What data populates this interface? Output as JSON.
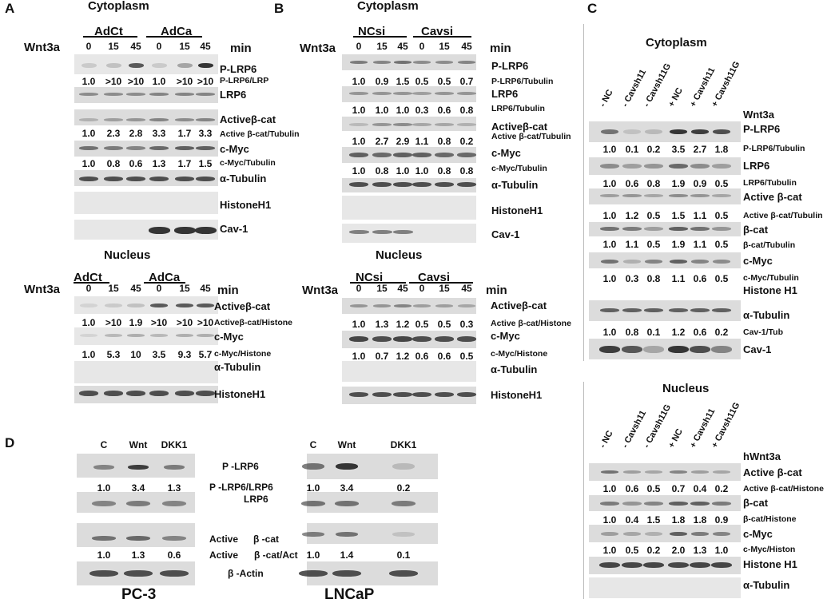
{
  "A": {
    "letter": "A",
    "cyto": {
      "title": "Cytoplasm",
      "treatment": "Wnt3a",
      "groups": [
        "AdCt",
        "AdCa"
      ],
      "times": [
        "0",
        "15",
        "45",
        "0",
        "15",
        "45"
      ],
      "unit": "min",
      "rows": [
        {
          "label": "P-LRP6",
          "quant": "P-LRP6/LRP",
          "values": [
            "1.0",
            ">10",
            ">10",
            "1.0",
            ">10",
            ">10"
          ]
        },
        {
          "label": "LRP6"
        },
        {
          "label": "Activeβ-cat",
          "quant": "Active β-cat/Tubulin",
          "values": [
            "1.0",
            "2.3",
            "2.8",
            "3.3",
            "1.7",
            "3.3"
          ]
        },
        {
          "label": "c-Myc",
          "quant": "c-Myc/Tubulin",
          "values": [
            "1.0",
            "0.8",
            "0.6",
            "1.3",
            "1.7",
            "1.5"
          ]
        },
        {
          "label": "α-Tubulin"
        },
        {
          "label": "HistoneH1"
        },
        {
          "label": "Cav-1"
        }
      ]
    },
    "nuc": {
      "title": "Nucleus",
      "treatment": "Wnt3a",
      "groups": [
        "AdCt",
        "AdCa"
      ],
      "times": [
        "0",
        "15",
        "45",
        "0",
        "15",
        "45"
      ],
      "unit": "min",
      "rows": [
        {
          "label": "Activeβ-cat",
          "quant": "Activeβ-cat/Histone",
          "values": [
            "1.0",
            ">10",
            "1.9",
            ">10",
            ">10",
            ">10"
          ]
        },
        {
          "label": "c-Myc",
          "quant": "c-Myc/Histone",
          "values": [
            "1.0",
            "5.3",
            "10",
            "3.5",
            "9.3",
            "5.7"
          ]
        },
        {
          "label": "α-Tubulin"
        },
        {
          "label": "HistoneH1"
        }
      ]
    }
  },
  "B": {
    "letter": "B",
    "cyto": {
      "title": "Cytoplasm",
      "treatment": "Wnt3a",
      "groups": [
        "NCsi",
        "Cavsi"
      ],
      "times": [
        "0",
        "15",
        "45",
        "0",
        "15",
        "45"
      ],
      "unit": "min",
      "rows": [
        {
          "label": "P-LRP6",
          "quant": "P-LRP6/Tubulin",
          "values": [
            "1.0",
            "0.9",
            "1.5",
            "0.5",
            "0.5",
            "0.7"
          ]
        },
        {
          "label": "LRP6",
          "quant": "LRP6/Tubulin",
          "values": [
            "1.0",
            "1.0",
            "1.0",
            "0.3",
            "0.6",
            "0.8"
          ]
        },
        {
          "label": "Activeβ-cat",
          "quant": "Active β-cat/Tubulin",
          "values": [
            "1.0",
            "2.7",
            "2.9",
            "1.1",
            "0.8",
            "0.2"
          ]
        },
        {
          "label": "c-Myc",
          "quant": "c-Myc/Tubulin",
          "values": [
            "1.0",
            "0.8",
            "1.0",
            "1.0",
            "0.8",
            "0.8"
          ]
        },
        {
          "label": "α-Tubulin"
        },
        {
          "label": "HistoneH1"
        },
        {
          "label": "Cav-1"
        }
      ]
    },
    "nuc": {
      "title": "Nucleus",
      "treatment": "Wnt3a",
      "groups": [
        "NCsi",
        "Cavsi"
      ],
      "times": [
        "0",
        "15",
        "45",
        "0",
        "15",
        "45"
      ],
      "unit": "min",
      "rows": [
        {
          "label": "Activeβ-cat",
          "quant": "Active β-cat/Histone",
          "values": [
            "1.0",
            "1.3",
            "1.2",
            "0.5",
            "0.5",
            "0.3"
          ]
        },
        {
          "label": "c-Myc",
          "quant": "c-Myc/Histone",
          "values": [
            "1.0",
            "0.7",
            "1.2",
            "0.6",
            "0.6",
            "0.5"
          ]
        },
        {
          "label": "α-Tubulin"
        },
        {
          "label": "HistoneH1"
        }
      ]
    }
  },
  "C": {
    "letter": "C",
    "cyto": {
      "title": "Cytoplasm",
      "treatment": "Wnt3a",
      "lanes": [
        "- NC",
        "- Cavsh11",
        "- Cavsh11G",
        "+ NC",
        "+ Cavsh11",
        "+ Cavsh11G"
      ],
      "rows": [
        {
          "label": "P-LRP6",
          "quant": "P-LRP6/Tubulin",
          "values": [
            "1.0",
            "0.1",
            "0.2",
            "3.5",
            "2.7",
            "1.8"
          ]
        },
        {
          "label": "LRP6",
          "quant": "LRP6/Tubulin",
          "values": [
            "1.0",
            "0.6",
            "0.8",
            "1.9",
            "0.9",
            "0.5"
          ]
        },
        {
          "label": "Active β-cat",
          "quant": "Active β-cat/Tubulin",
          "values": [
            "1.0",
            "1.2",
            "0.5",
            "1.5",
            "1.1",
            "0.5"
          ]
        },
        {
          "label": "β-cat",
          "quant": "β-cat/Tubulin",
          "values": [
            "1.0",
            "1.1",
            "0.5",
            "1.9",
            "1.1",
            "0.5"
          ]
        },
        {
          "label": "c-Myc",
          "quant": "c-Myc/Tubulin",
          "values": [
            "1.0",
            "0.3",
            "0.8",
            "1.1",
            "0.6",
            "0.5"
          ]
        },
        {
          "label": "Histone H1"
        },
        {
          "label": "α-Tubulin",
          "quant": "Cav-1/Tub",
          "values": [
            "1.0",
            "0.8",
            "0.1",
            "1.2",
            "0.6",
            "0.2"
          ]
        },
        {
          "label": "Cav-1"
        }
      ]
    },
    "nuc": {
      "title": "Nucleus",
      "treatment": "hWnt3a",
      "lanes": [
        "- NC",
        "- Cavsh11",
        "- Cavsh11G",
        "+ NC",
        "+ Cavsh11",
        "+ Cavsh11G"
      ],
      "rows": [
        {
          "label": "Active β-cat",
          "quant": "Active β-cat/Histone",
          "values": [
            "1.0",
            "0.6",
            "0.5",
            "0.7",
            "0.4",
            "0.2"
          ]
        },
        {
          "label": "β-cat",
          "quant": "β-cat/Histone",
          "values": [
            "1.0",
            "0.4",
            "1.5",
            "1.8",
            "1.8",
            "0.9"
          ]
        },
        {
          "label": "c-Myc",
          "quant": "c-Myc/Histon",
          "values": [
            "1.0",
            "0.5",
            "0.2",
            "2.0",
            "1.3",
            "1.0"
          ]
        },
        {
          "label": "Histone H1"
        },
        {
          "label": "α-Tubulin"
        }
      ]
    }
  },
  "D": {
    "letter": "D",
    "lanes": [
      "C",
      "Wnt",
      "DKK1"
    ],
    "pc3": {
      "name": "PC-3",
      "plrp6": [
        "1.0",
        "3.4",
        "1.3"
      ],
      "actcat": [
        "1.0",
        "1.3",
        "0.6"
      ]
    },
    "lncap": {
      "name": "LNCaP",
      "plrp6": [
        "1.0",
        "3.4",
        "0.2"
      ],
      "actcat": [
        "1.0",
        "1.4",
        "0.1"
      ]
    },
    "labels": {
      "plrp6": "P -LRP6",
      "plrp6_quant": "P -LRP6/LRP6",
      "lrp6": "LRP6",
      "actcat_a": "Active",
      "actcat_b": "β -cat",
      "actcat_quant_a": "Active",
      "actcat_quant_b": "β -cat/Act",
      "actin": "β -Actin"
    }
  }
}
